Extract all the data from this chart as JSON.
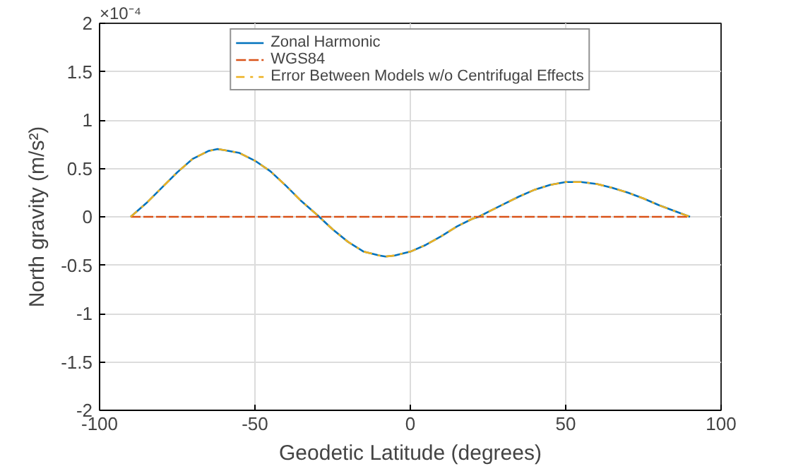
{
  "chart_data": {
    "type": "line",
    "xlabel": "Geodetic Latitude (degrees)",
    "ylabel": "North gravity (m/s²)",
    "annotations": [
      "×10⁻⁴"
    ],
    "x": [
      -90,
      -85,
      -80,
      -75,
      -70,
      -65,
      -62,
      -60,
      -55,
      -50,
      -45,
      -40,
      -35,
      -30,
      -25,
      -20,
      -15,
      -10,
      -8,
      -5,
      0,
      5,
      10,
      15,
      20,
      22,
      25,
      30,
      35,
      40,
      45,
      50,
      52,
      55,
      60,
      65,
      70,
      75,
      80,
      85,
      90
    ],
    "series": [
      {
        "name": "Zonal Harmonic",
        "color": "#0072bd",
        "line_style": "solid",
        "values": [
          0,
          0.14,
          0.3,
          0.46,
          0.6,
          0.68,
          0.7,
          0.69,
          0.66,
          0.58,
          0.47,
          0.32,
          0.16,
          0.02,
          -0.13,
          -0.26,
          -0.36,
          -0.4,
          -0.41,
          -0.4,
          -0.36,
          -0.29,
          -0.2,
          -0.1,
          -0.02,
          0,
          0.05,
          0.13,
          0.21,
          0.28,
          0.33,
          0.36,
          0.36,
          0.36,
          0.34,
          0.3,
          0.25,
          0.19,
          0.12,
          0.06,
          0
        ]
      },
      {
        "name": "WGS84",
        "color": "#d95319",
        "line_style": "dashed",
        "values": [
          0,
          0,
          0,
          0,
          0,
          0,
          0,
          0,
          0,
          0,
          0,
          0,
          0,
          0,
          0,
          0,
          0,
          0,
          0,
          0,
          0,
          0,
          0,
          0,
          0,
          0,
          0,
          0,
          0,
          0,
          0,
          0,
          0,
          0,
          0,
          0,
          0,
          0,
          0,
          0,
          0
        ]
      },
      {
        "name": "Error Between Models w/o Centrifugal Effects",
        "color": "#edb120",
        "line_style": "dashdot",
        "values": [
          0,
          0.14,
          0.3,
          0.46,
          0.6,
          0.68,
          0.7,
          0.69,
          0.66,
          0.58,
          0.47,
          0.32,
          0.16,
          0.02,
          -0.13,
          -0.26,
          -0.36,
          -0.4,
          -0.41,
          -0.4,
          -0.36,
          -0.29,
          -0.2,
          -0.1,
          -0.02,
          0,
          0.05,
          0.13,
          0.21,
          0.28,
          0.33,
          0.36,
          0.36,
          0.36,
          0.34,
          0.3,
          0.25,
          0.19,
          0.12,
          0.06,
          0
        ]
      }
    ],
    "xlim": [
      -100,
      100
    ],
    "xticks": [
      -100,
      -50,
      0,
      50,
      100
    ],
    "ylim": [
      -2,
      2
    ],
    "yticks": [
      -2,
      -1.5,
      -1,
      -0.5,
      0,
      0.5,
      1,
      1.5,
      2
    ],
    "grid": true,
    "legend": "top",
    "marker": "none"
  }
}
